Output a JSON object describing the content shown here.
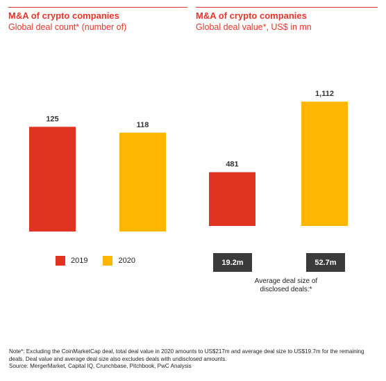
{
  "colors": {
    "accent": "#e8352b",
    "y2019": "#e03420",
    "y2020": "#ffb600",
    "avg_box": "#3a3a3a"
  },
  "chart_data": [
    {
      "type": "bar",
      "title": "M&A of crypto companies",
      "subtitle": "Global deal count* (number of)",
      "categories": [
        "2019",
        "2020"
      ],
      "values": [
        125,
        118
      ],
      "data_labels": [
        "125",
        "118"
      ],
      "ylim": [
        0,
        200
      ],
      "grid": false,
      "legend": "bottom"
    },
    {
      "type": "bar",
      "title": "M&A of crypto companies",
      "subtitle": "Global deal value*, US$ in mn",
      "categories": [
        "2019",
        "2020"
      ],
      "values": [
        481,
        1112
      ],
      "data_labels": [
        "481",
        "1,112"
      ],
      "ylim": [
        0,
        1250
      ],
      "grid": false,
      "annotations": [
        "19.2m",
        "52.7m"
      ]
    }
  ],
  "legend": [
    {
      "label": "2019",
      "color": "#e03420"
    },
    {
      "label": "2020",
      "color": "#ffb600"
    }
  ],
  "avg_deal": {
    "values": [
      "19.2m",
      "52.7m"
    ],
    "caption_line1": "Average deal size of",
    "caption_line2": "disclosed deals:*"
  },
  "footnote": {
    "line1": "Note*: Excluding the CoinMarketCap deal, total deal value in 2020 amounts to US$217m and average deal size to US$19.7m for the remaining deals. Deal value and average deal size also excludes deals with undisclosed amounts.",
    "line2": "Source: MergerMarket, Capital IQ, Crunchbase, Pitchbook, PwC Analysis"
  }
}
